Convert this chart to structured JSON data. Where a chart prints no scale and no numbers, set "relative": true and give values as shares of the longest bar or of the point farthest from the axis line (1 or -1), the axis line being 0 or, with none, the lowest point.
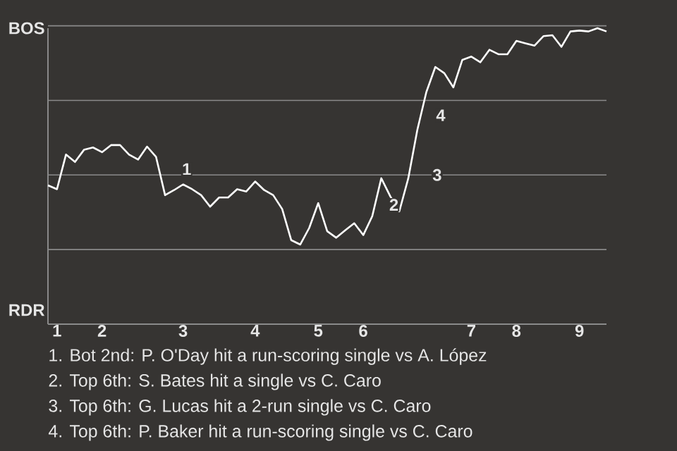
{
  "chart_data": {
    "type": "line",
    "relative": true,
    "tick_labels": "x",
    "categories": [
      null,
      "1",
      null,
      null,
      null,
      null,
      "2",
      null,
      null,
      null,
      null,
      null,
      null,
      null,
      null,
      "3",
      null,
      null,
      null,
      null,
      null,
      null,
      null,
      "4",
      null,
      null,
      null,
      null,
      null,
      null,
      "5",
      null,
      null,
      null,
      null,
      "6",
      null,
      null,
      null,
      null,
      null,
      null,
      null,
      null,
      null,
      null,
      null,
      "7",
      null,
      null,
      null,
      null,
      "8",
      null,
      null,
      null,
      null,
      null,
      null,
      "9",
      null,
      null,
      null
    ],
    "series": [
      {
        "color": "#ffffff",
        "values": [
          0.469,
          0.456,
          0.573,
          0.548,
          0.589,
          0.597,
          0.581,
          0.605,
          0.605,
          0.573,
          0.556,
          0.6,
          0.565,
          0.436,
          0.453,
          0.472,
          0.456,
          0.436,
          0.397,
          0.428,
          0.428,
          0.456,
          0.448,
          0.482,
          0.453,
          0.436,
          0.389,
          0.284,
          0.269,
          0.325,
          0.409,
          0.314,
          0.292,
          0.317,
          0.341,
          0.301,
          0.365,
          0.493,
          0.432,
          0.381,
          0.493,
          0.656,
          0.784,
          0.869,
          0.848,
          0.8,
          0.893,
          0.904,
          0.885,
          0.927,
          0.912,
          0.912,
          0.957,
          0.949,
          0.941,
          0.973,
          0.976,
          0.937,
          0.989,
          0.992,
          0.989,
          1,
          0.989
        ]
      }
    ],
    "grid": true,
    "annotations": [
      "BOS",
      "RDR",
      "1",
      "2",
      "3",
      "4",
      "1. Bot 2nd: P. O'Day hit a run-scoring single vs A. López",
      "2. Top 6th: S. Bates hit a single vs C. Caro",
      "3. Top 6th: G. Lucas hit a 2-run single vs C. Caro",
      "4. Top 6th: P. Baker hit a run-scoring single vs C. Caro"
    ]
  }
}
